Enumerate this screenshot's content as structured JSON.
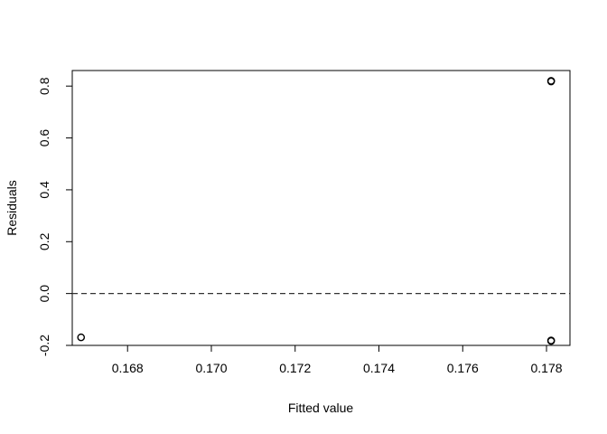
{
  "chart_data": {
    "type": "scatter",
    "title": "",
    "xlabel": "Fitted value",
    "ylabel": "Residuals",
    "xlim": [
      0.16668,
      0.17856
    ],
    "ylim": [
      -0.2,
      0.86
    ],
    "x_ticks": [
      0.168,
      0.17,
      0.172,
      0.174,
      0.176,
      0.178
    ],
    "x_tick_labels": [
      "0.168",
      "0.170",
      "0.172",
      "0.174",
      "0.176",
      "0.178"
    ],
    "y_ticks": [
      -0.2,
      0.0,
      0.2,
      0.4,
      0.6,
      0.8
    ],
    "y_tick_labels": [
      "-0.2",
      "0.0",
      "0.2",
      "0.4",
      "0.6",
      "0.8"
    ],
    "reference_line": {
      "y": 0.0,
      "style": "dashed"
    },
    "grid": false,
    "points": [
      {
        "x": 0.16689,
        "y": -0.169
      },
      {
        "x": 0.17811,
        "y": 0.82
      },
      {
        "x": 0.17811,
        "y": 0.818
      },
      {
        "x": 0.17811,
        "y": -0.181
      },
      {
        "x": 0.17811,
        "y": -0.183
      }
    ]
  }
}
